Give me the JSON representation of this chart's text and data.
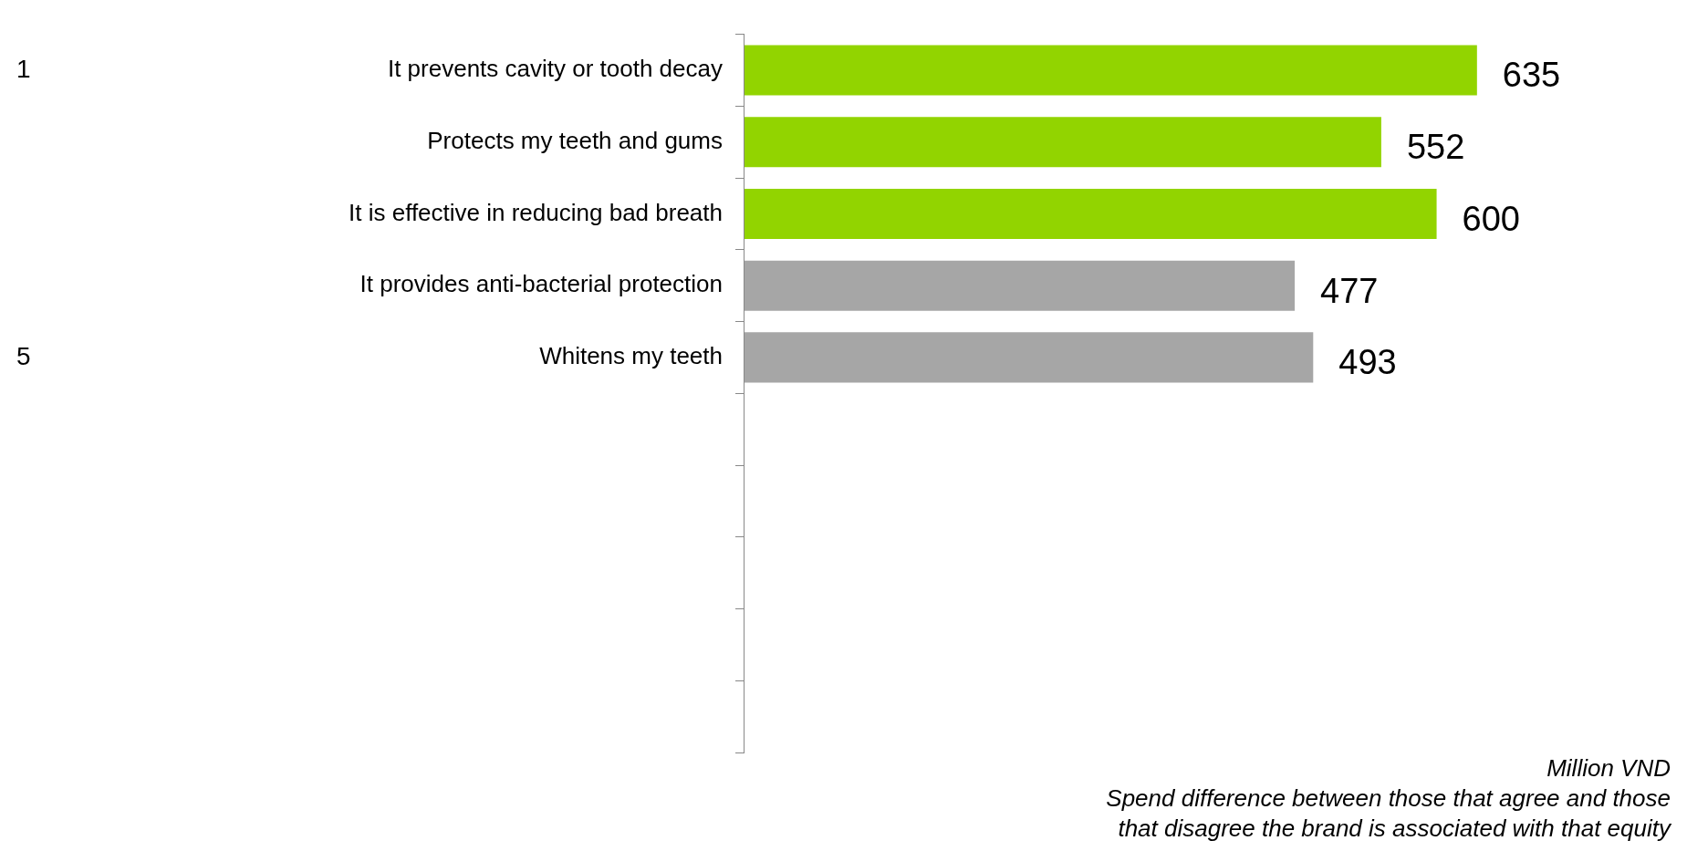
{
  "chart_data": {
    "type": "bar",
    "orientation": "horizontal",
    "categories": [
      "It prevents cavity or tooth decay",
      "Protects my teeth and gums",
      "It is effective in reducing bad breath",
      "It provides anti-bacterial protection",
      "Whitens my teeth",
      null,
      null,
      null,
      null,
      null
    ],
    "values": [
      635,
      552,
      600,
      477,
      493,
      null,
      null,
      null,
      null,
      null
    ],
    "colors": [
      "#92d400",
      "#92d400",
      "#92d400",
      "#a6a6a6",
      "#a6a6a6",
      null,
      null,
      null,
      null,
      null
    ],
    "data_labels": true,
    "legend": false,
    "annotations": [
      "1",
      "5",
      "Million VND",
      "Spend difference between those that agree and those",
      "that disagree the brand is associated with that equity"
    ]
  }
}
